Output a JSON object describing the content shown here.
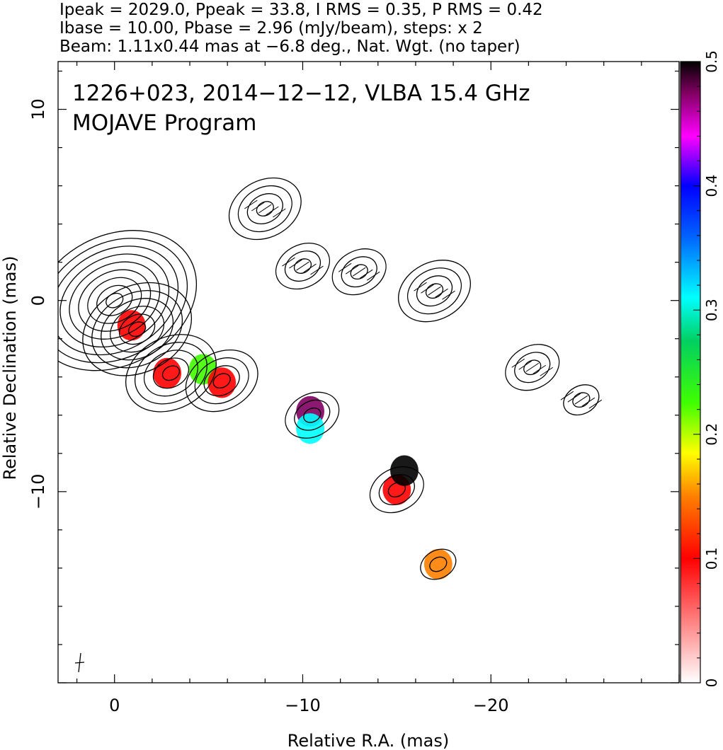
{
  "header": {
    "line1": "Ipeak = 2029.0, Ppeak = 33.8, I RMS = 0.35, P RMS = 0.42",
    "line2": "Ibase = 10.00, Pbase = 2.96 (mJy/beam), steps: x 2",
    "line3": "Beam: 1.11x0.44 mas at −6.8 deg., Nat. Wgt. (no taper)"
  },
  "chart_data": {
    "type": "heatmap",
    "source_label": "1226+023, 2014−12−12, VLBA 15.4 GHz",
    "program_label": "MOJAVE Program",
    "xlabel": "Relative R.A. (mas)",
    "ylabel": "Relative Declination (mas)",
    "xlim": [
      3,
      -30
    ],
    "ylim": [
      -20,
      12.5
    ],
    "x_ticks": [
      0,
      -10,
      -20
    ],
    "x_tick_labels": [
      "0",
      "−10",
      "−20"
    ],
    "y_ticks": [
      -10,
      0,
      10
    ],
    "y_tick_labels": [
      "−10",
      "0",
      "10"
    ],
    "colorbar": {
      "min": 0,
      "max": 0.5,
      "ticks": [
        0,
        0.1,
        0.2,
        0.3,
        0.4,
        0.5
      ],
      "tick_labels": [
        "0",
        "0.1",
        "0.2",
        "0.3",
        "0.4",
        "0.5"
      ]
    },
    "contour_components": [
      {
        "x": 0,
        "y": 0,
        "levels": 9
      },
      {
        "x": -1.2,
        "y": -1.5,
        "levels": 6
      },
      {
        "x": -3,
        "y": -3.8,
        "levels": 5
      },
      {
        "x": -5.7,
        "y": -4.2,
        "levels": 4
      },
      {
        "x": -8,
        "y": 4.8,
        "levels": 4
      },
      {
        "x": -10,
        "y": 1.8,
        "levels": 3
      },
      {
        "x": -13,
        "y": 1.5,
        "levels": 3
      },
      {
        "x": -17,
        "y": 0.5,
        "levels": 4
      },
      {
        "x": -22.2,
        "y": -3.5,
        "levels": 3
      },
      {
        "x": -24.8,
        "y": -5.2,
        "levels": 2
      },
      {
        "x": -10.5,
        "y": -6,
        "levels": 3
      },
      {
        "x": -15,
        "y": -9.9,
        "levels": 3
      },
      {
        "x": -17.2,
        "y": -13.8,
        "levels": 2
      }
    ],
    "polarization_blobs": [
      {
        "x": -0.9,
        "y": -1.3,
        "frac": 0.08
      },
      {
        "x": -2.8,
        "y": -3.8,
        "frac": 0.09
      },
      {
        "x": -4.7,
        "y": -3.6,
        "frac": 0.22
      },
      {
        "x": -5.7,
        "y": -4.3,
        "frac": 0.09
      },
      {
        "x": -10.4,
        "y": -5.8,
        "frac": 0.47
      },
      {
        "x": -10.4,
        "y": -6.7,
        "frac": 0.3
      },
      {
        "x": -15,
        "y": -9.9,
        "frac": 0.1
      },
      {
        "x": -15.4,
        "y": -8.9,
        "frac": 0.48
      },
      {
        "x": -17.2,
        "y": -13.8,
        "frac": 0.11
      }
    ]
  }
}
